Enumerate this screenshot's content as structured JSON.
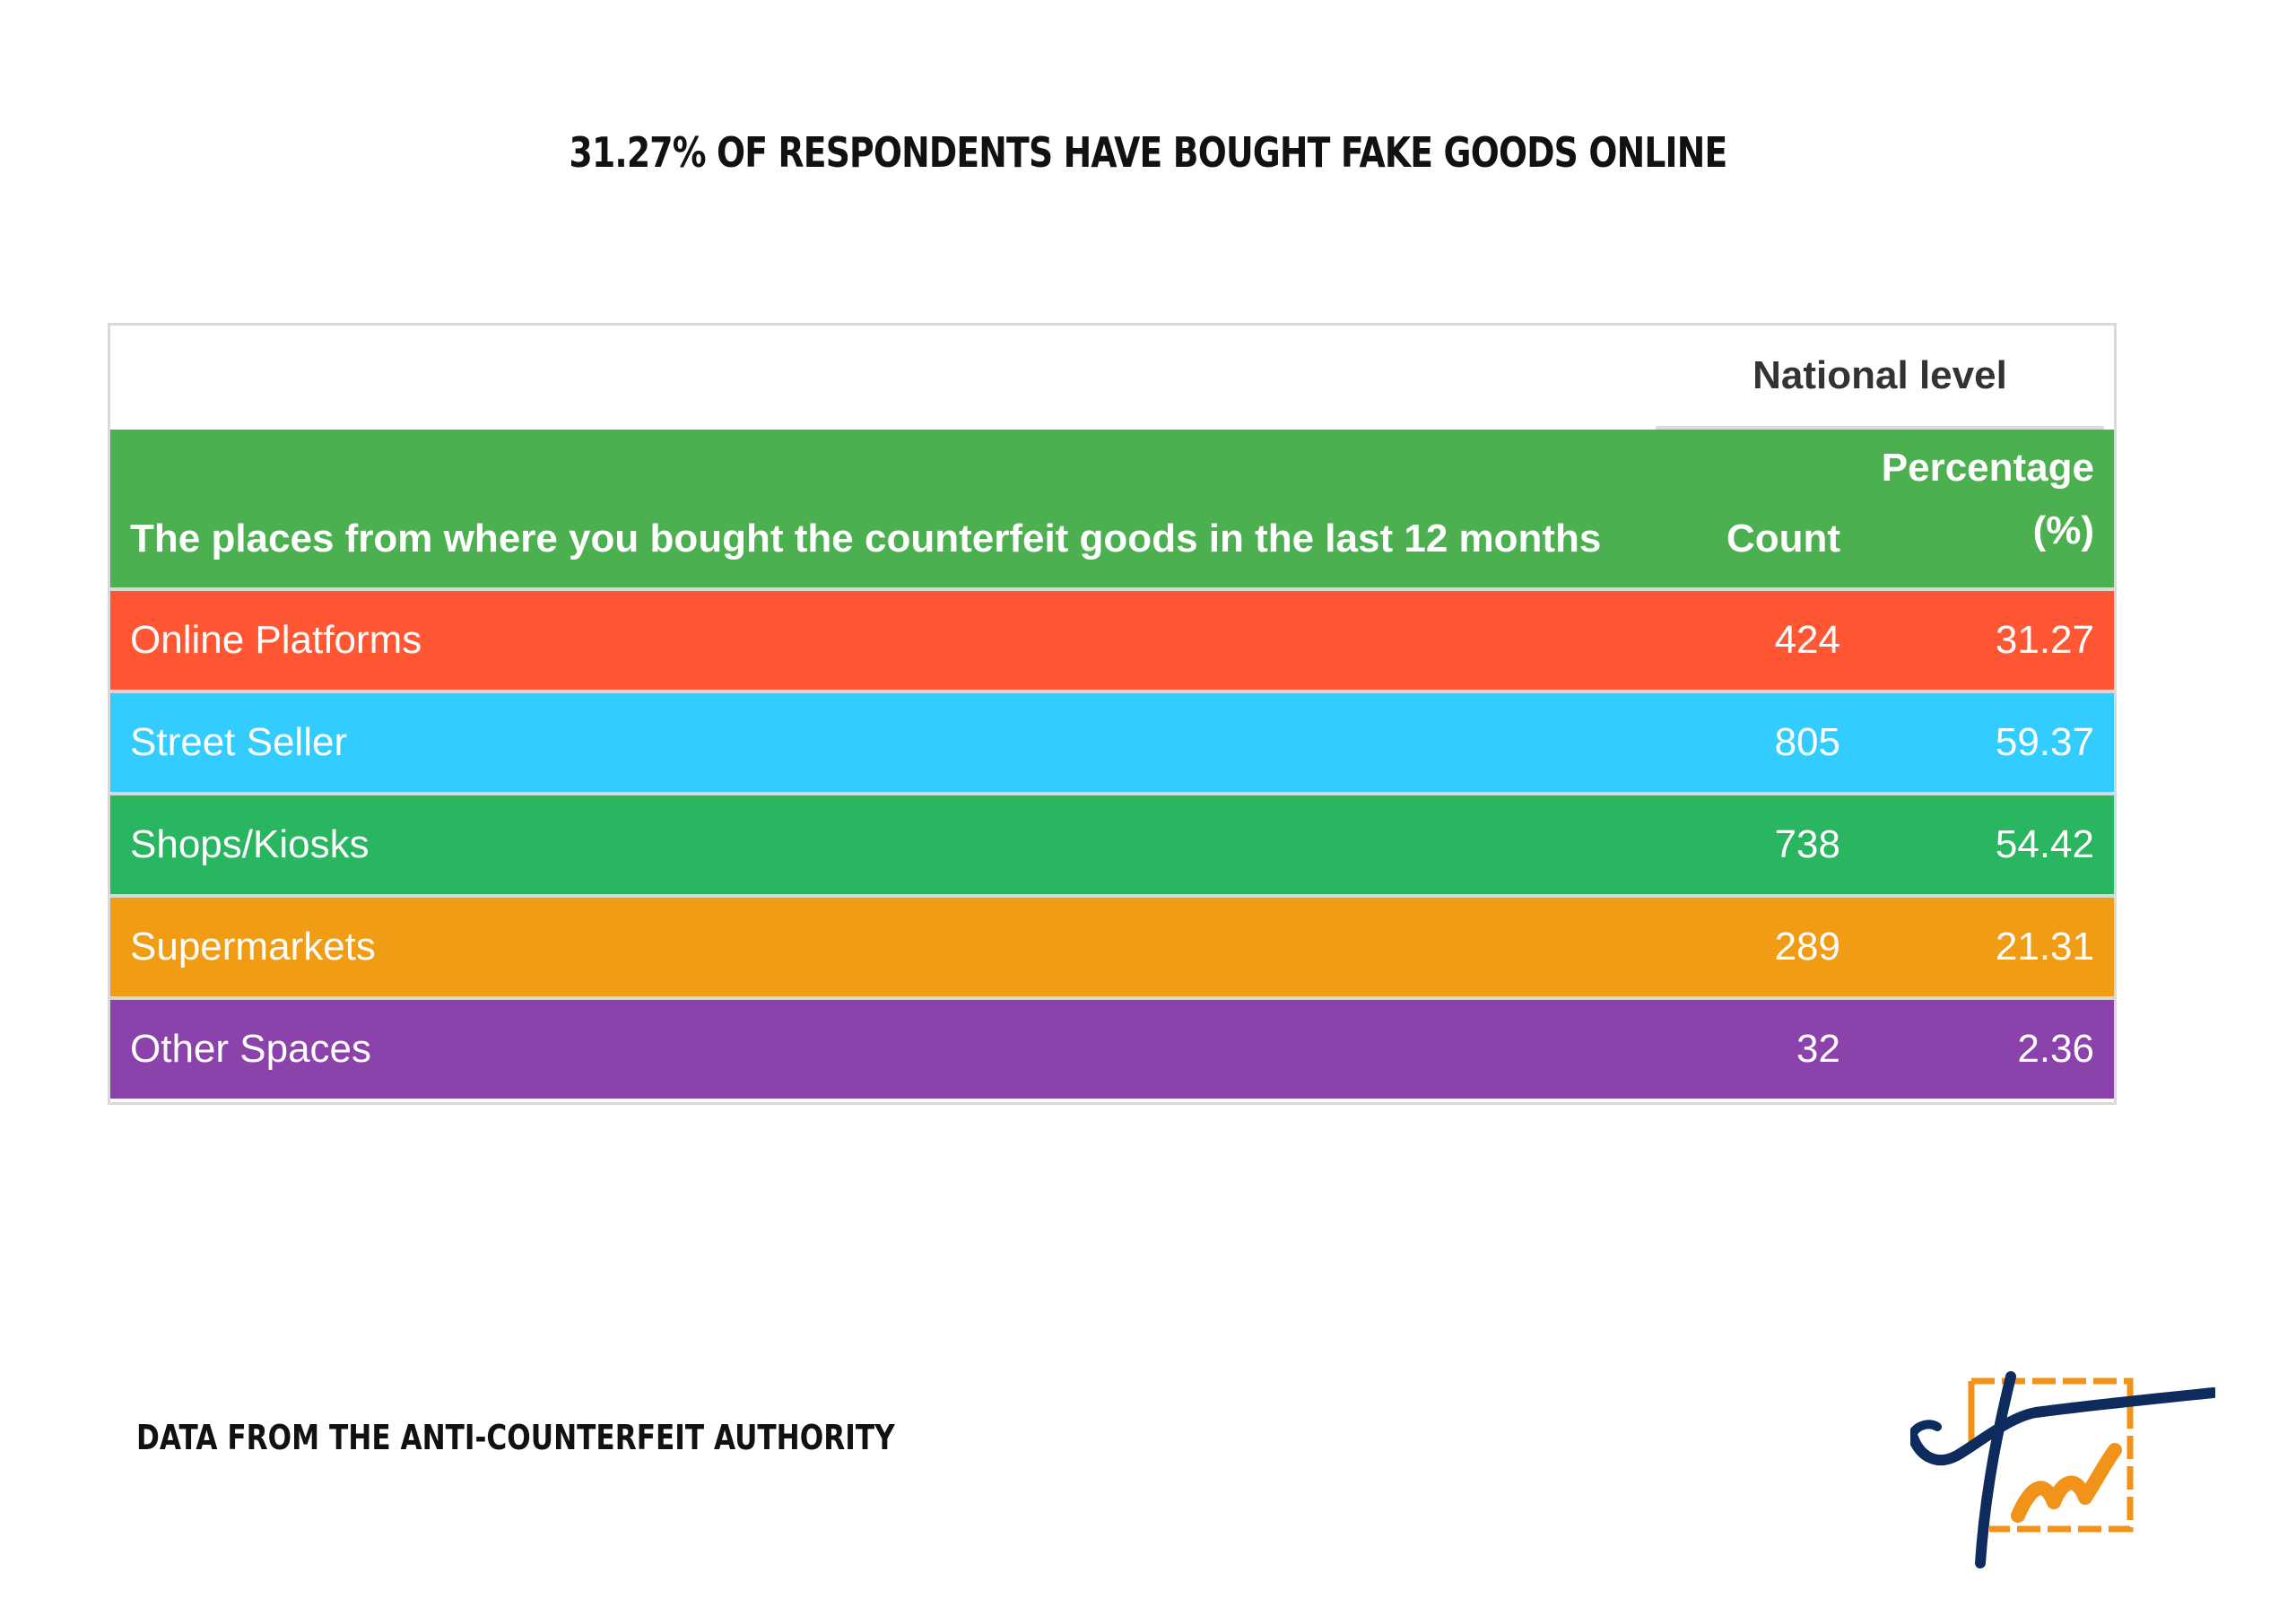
{
  "title": "31.27% OF RESPONDENTS HAVE BOUGHT FAKE GOODS ONLINE",
  "source": "DATA FROM THE ANTI-COUNTERFEIT AUTHORITY",
  "colors": {
    "header": "#4caf50",
    "rows": [
      "#ff5733",
      "#33ccff",
      "#2ab561",
      "#f09c15",
      "#8b42aa"
    ],
    "logo_blue": "#0d2b5c",
    "logo_orange": "#f29319"
  },
  "chart_data": {
    "type": "table",
    "group_header": "National level",
    "columns": {
      "place": "The places from where you bought the counterfeit goods in the last 12 months",
      "count": "Count",
      "percentage_line1": "Percentage",
      "percentage_line2": "(%)"
    },
    "rows": [
      {
        "place": "Online Platforms",
        "count": "424",
        "percentage": "31.27"
      },
      {
        "place": "Street Seller",
        "count": "805",
        "percentage": "59.37"
      },
      {
        "place": "Shops/Kiosks",
        "count": "738",
        "percentage": "54.42"
      },
      {
        "place": "Supermarkets",
        "count": "289",
        "percentage": "21.31"
      },
      {
        "place": "Other Spaces",
        "count": "32",
        "percentage": "2.36"
      }
    ]
  }
}
